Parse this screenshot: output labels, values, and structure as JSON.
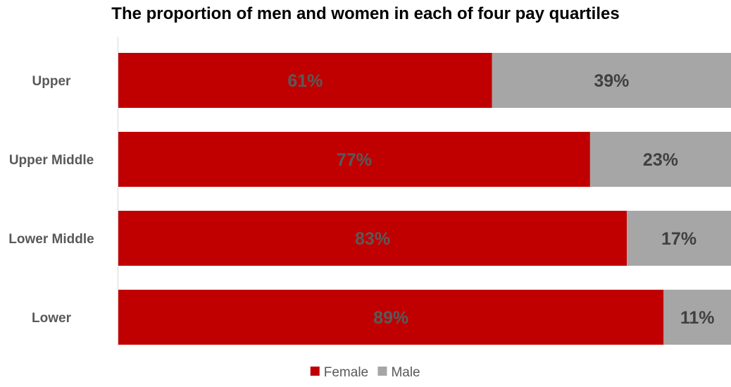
{
  "chart_data": {
    "type": "bar",
    "orientation": "horizontal",
    "stacked": true,
    "title": "The proportion of men and women in each of four pay quartiles",
    "categories": [
      "Upper",
      "Upper Middle",
      "Lower Middle",
      "Lower"
    ],
    "series": [
      {
        "name": "Female",
        "values": [
          61,
          77,
          83,
          89
        ],
        "labels": [
          "61%",
          "77%",
          "83%",
          "89%"
        ],
        "color": "#C00000",
        "label_color": "#595959"
      },
      {
        "name": "Male",
        "values": [
          39,
          23,
          17,
          11
        ],
        "labels": [
          "39%",
          "23%",
          "17%",
          "11%"
        ],
        "color": "#A6A6A6",
        "label_color": "#404040"
      }
    ],
    "xlim": [
      0,
      100
    ],
    "xlabel": "",
    "ylabel": "",
    "grid": false,
    "legend_position": "bottom"
  }
}
